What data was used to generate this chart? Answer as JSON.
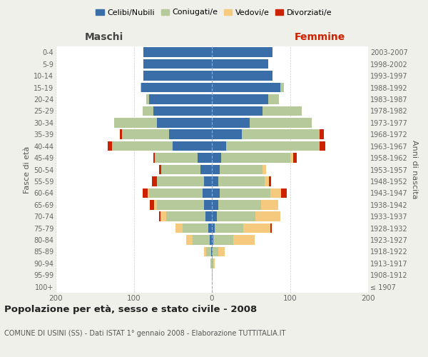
{
  "age_groups": [
    "100+",
    "95-99",
    "90-94",
    "85-89",
    "80-84",
    "75-79",
    "70-74",
    "65-69",
    "60-64",
    "55-59",
    "50-54",
    "45-49",
    "40-44",
    "35-39",
    "30-34",
    "25-29",
    "20-24",
    "15-19",
    "10-14",
    "5-9",
    "0-4"
  ],
  "birth_years": [
    "≤ 1907",
    "1908-1912",
    "1913-1917",
    "1918-1922",
    "1923-1927",
    "1928-1932",
    "1933-1937",
    "1938-1942",
    "1943-1947",
    "1948-1952",
    "1953-1957",
    "1958-1962",
    "1963-1967",
    "1968-1972",
    "1973-1977",
    "1978-1982",
    "1983-1987",
    "1988-1992",
    "1993-1997",
    "1998-2002",
    "2003-2007"
  ],
  "colors": {
    "celibe": "#3a6ea8",
    "coniugato": "#b5c99a",
    "vedovo": "#f5c97e",
    "divorziato": "#cc2200"
  },
  "maschi": {
    "celibe": [
      0,
      0,
      0,
      1,
      3,
      5,
      8,
      10,
      12,
      10,
      15,
      18,
      50,
      55,
      70,
      75,
      80,
      90,
      88,
      88,
      88
    ],
    "coniugato": [
      0,
      0,
      2,
      6,
      22,
      32,
      50,
      60,
      68,
      60,
      50,
      55,
      78,
      60,
      55,
      14,
      4,
      1,
      0,
      0,
      0
    ],
    "vedovo": [
      0,
      0,
      0,
      3,
      8,
      10,
      8,
      4,
      2,
      0,
      0,
      0,
      0,
      0,
      0,
      0,
      0,
      0,
      0,
      0,
      0
    ],
    "divorziato": [
      0,
      0,
      0,
      0,
      0,
      0,
      2,
      5,
      7,
      7,
      3,
      2,
      5,
      3,
      0,
      0,
      0,
      0,
      0,
      0,
      0
    ]
  },
  "femmine": {
    "nubile": [
      0,
      0,
      0,
      1,
      2,
      4,
      6,
      8,
      10,
      8,
      10,
      12,
      18,
      38,
      48,
      65,
      72,
      88,
      78,
      72,
      78
    ],
    "coniugata": [
      0,
      1,
      2,
      7,
      25,
      36,
      50,
      55,
      65,
      60,
      55,
      88,
      120,
      100,
      80,
      50,
      14,
      4,
      0,
      0,
      0
    ],
    "vedova": [
      0,
      0,
      2,
      8,
      28,
      35,
      32,
      22,
      14,
      5,
      4,
      4,
      0,
      0,
      0,
      0,
      0,
      0,
      0,
      0,
      0
    ],
    "divorziata": [
      0,
      0,
      0,
      0,
      0,
      2,
      0,
      0,
      7,
      3,
      0,
      5,
      7,
      5,
      0,
      0,
      0,
      0,
      0,
      0,
      0
    ]
  },
  "title": "Popolazione per età, sesso e stato civile - 2008",
  "subtitle": "COMUNE DI USINI (SS) - Dati ISTAT 1° gennaio 2008 - Elaborazione TUTTITALIA.IT",
  "ylabel_left": "Fasce di età",
  "ylabel_right": "Anni di nascita",
  "xlabel_maschi": "Maschi",
  "xlabel_femmine": "Femmine",
  "xlim": 200,
  "background_color": "#f0f0eb",
  "bar_background": "#ffffff",
  "legend_labels": [
    "Celibi/Nubili",
    "Coniugati/e",
    "Vedovi/e",
    "Divorziati/e"
  ]
}
